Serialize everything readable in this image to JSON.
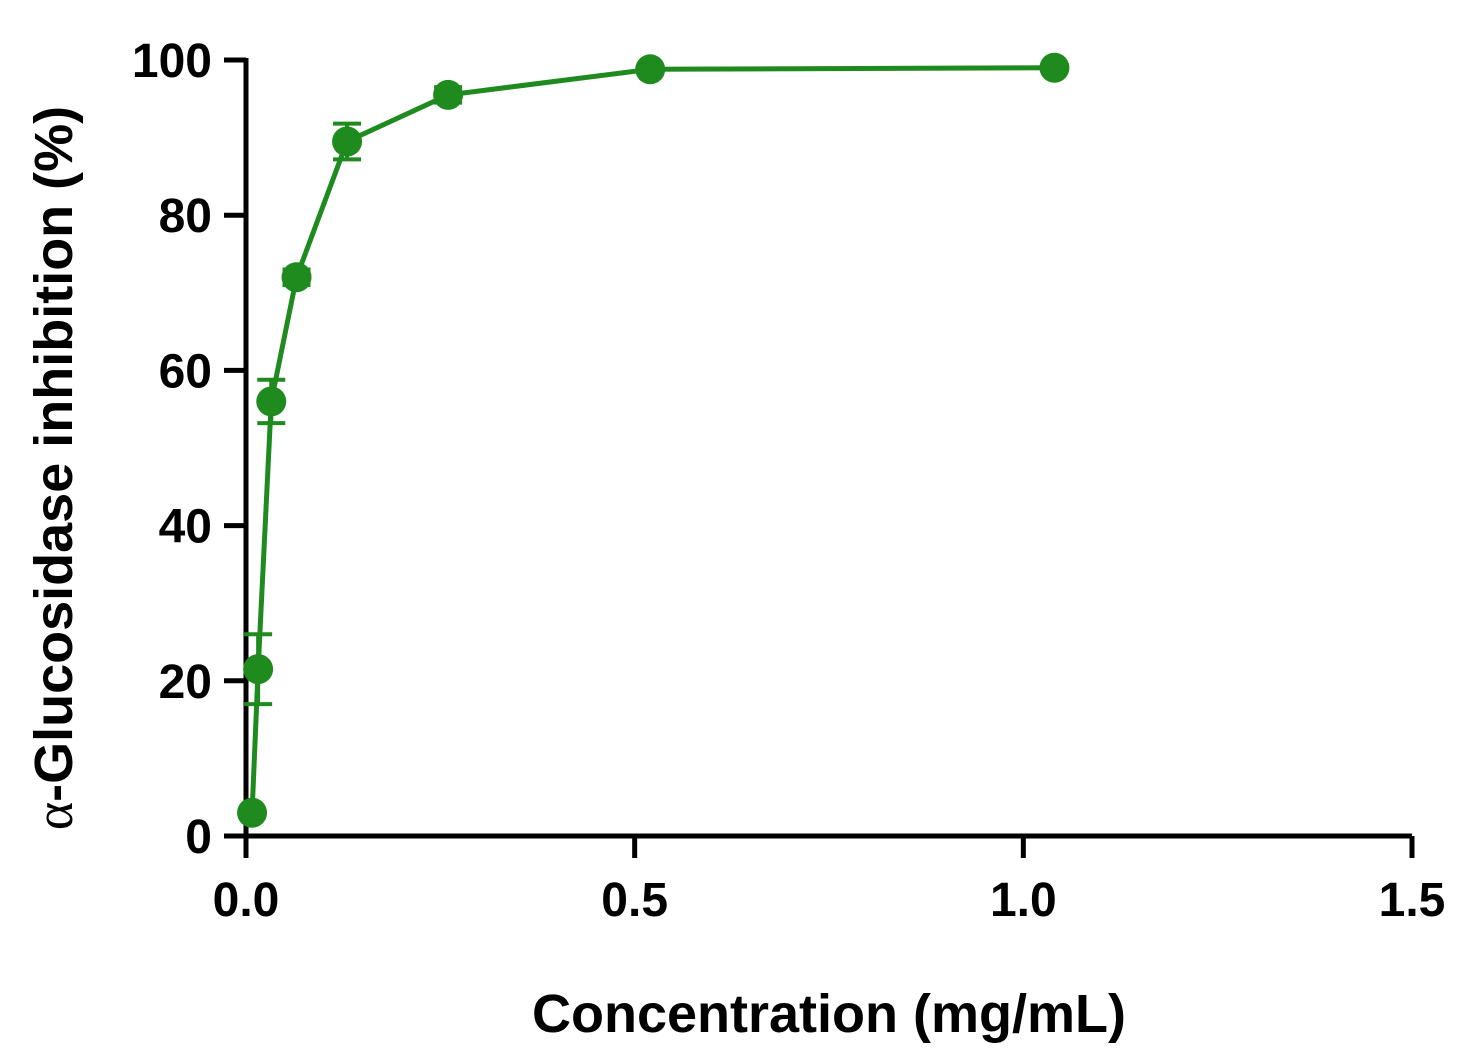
{
  "chart_data": {
    "type": "line",
    "title": "",
    "xlabel": "Concentration (mg/mL)",
    "ylabel_prefix": "α",
    "ylabel": "-Glucosidase inhibition (%)",
    "xlim": [
      0,
      1.5
    ],
    "ylim": [
      0,
      100
    ],
    "x_ticks": [
      0.0,
      0.5,
      1.0,
      1.5
    ],
    "x_tick_labels": [
      "0.0",
      "0.5",
      "1.0",
      "1.5"
    ],
    "y_ticks": [
      0,
      20,
      40,
      60,
      80,
      100
    ],
    "y_tick_labels": [
      "0",
      "20",
      "40",
      "60",
      "80",
      "100"
    ],
    "grid": false,
    "series": [
      {
        "color": "#1f8b1f",
        "x": [
          0.0078,
          0.0156,
          0.0325,
          0.065,
          0.13,
          0.26,
          0.52,
          1.04
        ],
        "y": [
          3.0,
          21.5,
          56.0,
          72.0,
          89.5,
          95.5,
          98.8,
          99.0
        ],
        "error": [
          0.5,
          4.5,
          2.8,
          1.0,
          2.3,
          1.0,
          0.5,
          0.4
        ]
      }
    ]
  }
}
